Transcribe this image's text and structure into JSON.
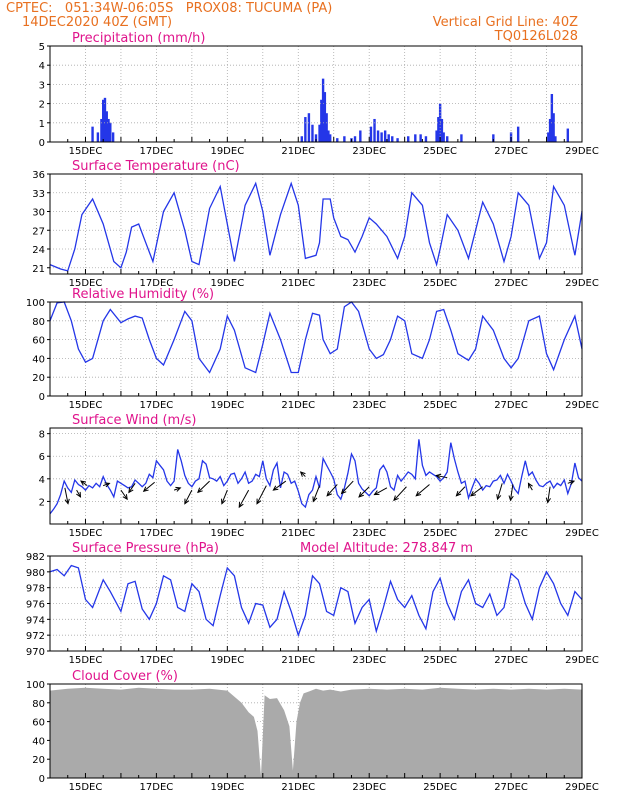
{
  "header": {
    "line1_left": "CPTEC:   051:34W-06:05S   PROX08: TUCUMA (PA)",
    "line2_left": "14DEC2020 40Z (GMT)",
    "line2_right": "Vertical Grid Line: 40Z",
    "line3_right": "TQ0126L028"
  },
  "colors": {
    "header": "#e87020",
    "panel_title": "#e0148c",
    "series": "#2436e8",
    "cloud": "#aaaaaa",
    "grid": "#aaaaaa"
  },
  "chart_data": [
    {
      "type": "bar",
      "title": "Precipitation (mm/h)",
      "ylim": [
        0,
        5
      ],
      "yticks": [
        "0",
        "1",
        "2",
        "3",
        "4",
        "5"
      ],
      "xlim": [
        14.0,
        29.0
      ],
      "xticks": [
        "15DEC",
        "17DEC",
        "19DEC",
        "21DEC",
        "23DEC",
        "25DEC",
        "27DEC",
        "29DEC"
      ],
      "grid": true,
      "x": [
        15.2,
        15.35,
        15.45,
        15.5,
        15.55,
        15.6,
        15.65,
        15.7,
        15.78,
        21.1,
        21.2,
        21.3,
        21.4,
        21.5,
        21.6,
        21.65,
        21.7,
        21.75,
        21.8,
        21.85,
        21.9,
        22.1,
        22.3,
        22.5,
        22.6,
        22.75,
        23.05,
        23.15,
        23.25,
        23.35,
        23.45,
        23.55,
        23.65,
        23.8,
        24.1,
        24.3,
        24.45,
        24.6,
        24.9,
        24.95,
        25.0,
        25.05,
        25.1,
        25.2,
        25.6,
        26.5,
        27.0,
        27.2,
        28.05,
        28.1,
        28.15,
        28.2,
        28.25,
        28.6
      ],
      "values": [
        0.8,
        0.5,
        1.2,
        2.2,
        2.3,
        1.6,
        1.2,
        1.0,
        0.5,
        0.3,
        1.3,
        1.5,
        0.9,
        0.4,
        0.9,
        2.2,
        3.3,
        2.6,
        1.5,
        0.6,
        0.4,
        0.2,
        0.3,
        0.2,
        0.3,
        0.6,
        0.8,
        1.2,
        0.6,
        0.5,
        0.6,
        0.4,
        0.3,
        0.2,
        0.3,
        0.4,
        0.4,
        0.3,
        0.6,
        1.3,
        2.0,
        1.2,
        0.5,
        0.3,
        0.4,
        0.4,
        0.5,
        0.8,
        0.5,
        1.2,
        2.5,
        1.5,
        0.3,
        0.7
      ]
    },
    {
      "type": "line",
      "title": "Surface Temperature (nC)",
      "ylim": [
        20,
        36
      ],
      "yticks": [
        "21",
        "24",
        "27",
        "30",
        "33",
        "36"
      ],
      "ytick_values": [
        21,
        24,
        27,
        30,
        33,
        36
      ],
      "xlim": [
        14.0,
        29.0
      ],
      "xticks": [
        "15DEC",
        "17DEC",
        "19DEC",
        "21DEC",
        "23DEC",
        "25DEC",
        "27DEC",
        "29DEC"
      ],
      "grid": true,
      "x": [
        14.0,
        14.3,
        14.5,
        14.7,
        14.9,
        15.2,
        15.5,
        15.8,
        16.0,
        16.15,
        16.3,
        16.5,
        16.7,
        16.9,
        17.2,
        17.5,
        17.8,
        18.0,
        18.2,
        18.5,
        18.8,
        19.0,
        19.2,
        19.5,
        19.8,
        20.0,
        20.2,
        20.5,
        20.8,
        21.0,
        21.2,
        21.5,
        21.6,
        21.7,
        21.9,
        22.0,
        22.2,
        22.4,
        22.6,
        22.8,
        23.0,
        23.2,
        23.5,
        23.8,
        24.0,
        24.2,
        24.5,
        24.7,
        24.9,
        25.0,
        25.2,
        25.5,
        25.8,
        26.0,
        26.2,
        26.5,
        26.8,
        27.0,
        27.2,
        27.5,
        27.8,
        28.0,
        28.2,
        28.5,
        28.8,
        29.0
      ],
      "values": [
        21.5,
        20.8,
        20.5,
        24.0,
        29.5,
        32.0,
        28.0,
        22.0,
        21.0,
        23.5,
        27.5,
        28.0,
        25.0,
        22.0,
        30.0,
        33.0,
        27.0,
        22.0,
        21.5,
        30.5,
        34.0,
        28.0,
        22.0,
        31.0,
        34.5,
        30.0,
        23.0,
        29.5,
        34.5,
        31.0,
        22.5,
        23.0,
        25.0,
        32.0,
        32.0,
        29.0,
        26.0,
        25.5,
        23.5,
        26.0,
        29.0,
        28.0,
        26.0,
        22.5,
        26.0,
        33.0,
        31.0,
        25.0,
        21.5,
        24.0,
        29.5,
        27.0,
        22.5,
        27.0,
        31.5,
        28.0,
        22.0,
        26.0,
        33.0,
        31.0,
        22.5,
        25.0,
        34.0,
        31.0,
        23.0,
        30.0
      ]
    },
    {
      "type": "line",
      "title": "Relative Humidity (%)",
      "ylim": [
        0,
        100
      ],
      "yticks": [
        "0",
        "20",
        "40",
        "60",
        "80",
        "100"
      ],
      "ytick_values": [
        0,
        20,
        40,
        60,
        80,
        100
      ],
      "xlim": [
        14.0,
        29.0
      ],
      "xticks": [
        "15DEC",
        "17DEC",
        "19DEC",
        "21DEC",
        "23DEC",
        "25DEC",
        "27DEC",
        "29DEC"
      ],
      "grid": true,
      "x": [
        14.0,
        14.2,
        14.4,
        14.6,
        14.8,
        15.0,
        15.2,
        15.5,
        15.7,
        16.0,
        16.2,
        16.4,
        16.6,
        16.8,
        17.0,
        17.2,
        17.5,
        17.8,
        18.0,
        18.2,
        18.5,
        18.8,
        19.0,
        19.2,
        19.5,
        19.8,
        20.0,
        20.2,
        20.5,
        20.8,
        21.0,
        21.2,
        21.4,
        21.6,
        21.7,
        21.9,
        22.1,
        22.3,
        22.5,
        22.7,
        23.0,
        23.2,
        23.4,
        23.6,
        23.8,
        24.0,
        24.2,
        24.5,
        24.7,
        24.9,
        25.1,
        25.3,
        25.5,
        25.8,
        26.0,
        26.2,
        26.5,
        26.8,
        27.0,
        27.2,
        27.5,
        27.8,
        28.0,
        28.2,
        28.5,
        28.8,
        29.0
      ],
      "values": [
        80.0,
        99.0,
        100.0,
        80.0,
        50.0,
        36.0,
        40.0,
        80.0,
        92.0,
        78.0,
        82.0,
        85.0,
        83.0,
        60.0,
        40.0,
        33.0,
        60.0,
        90.0,
        80.0,
        40.0,
        25.0,
        50.0,
        85.0,
        70.0,
        30.0,
        25.0,
        55.0,
        88.0,
        60.0,
        25.0,
        25.0,
        60.0,
        88.0,
        86.0,
        60.0,
        45.0,
        50.0,
        95.0,
        100.0,
        90.0,
        50.0,
        40.0,
        44.0,
        60.0,
        85.0,
        80.0,
        45.0,
        40.0,
        60.0,
        90.0,
        92.0,
        70.0,
        45.0,
        38.0,
        50.0,
        85.0,
        70.0,
        40.0,
        30.0,
        40.0,
        80.0,
        85.0,
        45.0,
        28.0,
        60.0,
        85.0,
        50.0
      ]
    },
    {
      "type": "line",
      "title": "Surface Wind (m/s)",
      "ylim": [
        0,
        8.5
      ],
      "yticks": [
        "2",
        "4",
        "6",
        "8"
      ],
      "ytick_values": [
        2,
        4,
        6,
        8
      ],
      "xlim": [
        14.0,
        29.0
      ],
      "xticks": [
        "15DEC",
        "17DEC",
        "19DEC",
        "21DEC",
        "23DEC",
        "25DEC",
        "27DEC",
        "29DEC"
      ],
      "grid": true,
      "x": [
        14.0,
        14.1,
        14.2,
        14.3,
        14.4,
        14.5,
        14.6,
        14.7,
        14.8,
        14.9,
        15.0,
        15.1,
        15.2,
        15.3,
        15.4,
        15.5,
        15.6,
        15.7,
        15.8,
        15.9,
        16.0,
        16.1,
        16.2,
        16.3,
        16.4,
        16.5,
        16.6,
        16.7,
        16.8,
        16.9,
        17.0,
        17.1,
        17.2,
        17.3,
        17.4,
        17.5,
        17.6,
        17.7,
        17.8,
        17.9,
        18.0,
        18.1,
        18.2,
        18.3,
        18.4,
        18.5,
        18.6,
        18.7,
        18.8,
        18.9,
        19.0,
        19.1,
        19.2,
        19.3,
        19.4,
        19.5,
        19.6,
        19.7,
        19.8,
        19.9,
        20.0,
        20.1,
        20.2,
        20.3,
        20.4,
        20.5,
        20.6,
        20.7,
        20.8,
        20.9,
        21.0,
        21.1,
        21.2,
        21.3,
        21.4,
        21.5,
        21.6,
        21.7,
        21.8,
        21.9,
        22.0,
        22.1,
        22.2,
        22.3,
        22.4,
        22.5,
        22.6,
        22.7,
        22.8,
        22.9,
        23.0,
        23.1,
        23.2,
        23.3,
        23.4,
        23.5,
        23.6,
        23.7,
        23.8,
        23.9,
        24.0,
        24.1,
        24.2,
        24.3,
        24.4,
        24.5,
        24.6,
        24.7,
        24.8,
        24.9,
        25.0,
        25.1,
        25.2,
        25.3,
        25.4,
        25.5,
        25.6,
        25.7,
        25.8,
        25.9,
        26.0,
        26.1,
        26.2,
        26.3,
        26.4,
        26.5,
        26.6,
        26.7,
        26.8,
        26.9,
        27.0,
        27.1,
        27.2,
        27.3,
        27.4,
        27.5,
        27.6,
        27.7,
        27.8,
        27.9,
        28.0,
        28.1,
        28.2,
        28.3,
        28.4,
        28.5,
        28.6,
        28.7,
        28.8,
        28.9,
        29.0
      ],
      "values": [
        0.9,
        1.3,
        1.8,
        2.6,
        3.8,
        3.2,
        2.8,
        3.9,
        3.5,
        3.3,
        3.0,
        3.4,
        3.2,
        3.6,
        3.3,
        4.2,
        3.5,
        3.0,
        2.4,
        3.8,
        3.6,
        3.4,
        3.2,
        3.3,
        3.9,
        3.6,
        3.3,
        3.6,
        4.4,
        4.1,
        5.6,
        5.2,
        4.8,
        3.8,
        3.4,
        3.8,
        6.6,
        5.6,
        4.3,
        3.6,
        3.3,
        3.8,
        4.0,
        5.6,
        5.3,
        4.1,
        4.0,
        3.8,
        4.2,
        3.4,
        3.8,
        4.4,
        4.5,
        3.6,
        4.0,
        4.6,
        3.6,
        3.8,
        4.4,
        4.2,
        5.6,
        4.0,
        3.4,
        4.8,
        5.4,
        3.2,
        4.6,
        4.4,
        3.6,
        3.8,
        2.9,
        1.8,
        1.5,
        2.6,
        3.0,
        4.2,
        3.2,
        5.8,
        5.2,
        4.6,
        4.0,
        2.6,
        2.2,
        3.2,
        4.5,
        6.2,
        5.6,
        3.6,
        3.1,
        2.8,
        2.5,
        2.9,
        3.2,
        4.8,
        5.2,
        4.6,
        3.3,
        3.0,
        4.3,
        3.8,
        4.2,
        4.6,
        4.4,
        4.0,
        7.5,
        5.2,
        4.3,
        4.6,
        4.4,
        4.2,
        3.8,
        4.1,
        4.6,
        7.2,
        5.8,
        4.6,
        3.6,
        3.8,
        2.3,
        3.2,
        4.0,
        3.6,
        3.0,
        3.4,
        3.3,
        3.8,
        3.9,
        4.3,
        3.6,
        4.4,
        3.8,
        3.1,
        2.7,
        4.2,
        5.6,
        4.3,
        4.6,
        3.9,
        3.4,
        3.3,
        3.6,
        3.8,
        3.2,
        3.6,
        3.4,
        3.9,
        2.7,
        3.6,
        5.4,
        4.1,
        3.8
      ],
      "arrows": [
        {
          "x": 14.42,
          "y": 3.2,
          "u": 0.4,
          "v": -1.4
        },
        {
          "x": 14.75,
          "y": 3.0,
          "u": 0.5,
          "v": -0.6
        },
        {
          "x": 15.05,
          "y": 3.4,
          "u": -0.8,
          "v": 0.4
        },
        {
          "x": 15.5,
          "y": 3.4,
          "u": 0.8,
          "v": 0.2
        },
        {
          "x": 16.0,
          "y": 3.0,
          "u": 0.8,
          "v": -0.8
        },
        {
          "x": 16.4,
          "y": 3.6,
          "u": -0.8,
          "v": -0.8
        },
        {
          "x": 16.95,
          "y": 3.7,
          "u": -1.4,
          "v": -0.8
        },
        {
          "x": 17.5,
          "y": 3.0,
          "u": 0.8,
          "v": 0.2
        },
        {
          "x": 18.0,
          "y": 3.0,
          "u": -0.9,
          "v": -1.2
        },
        {
          "x": 18.5,
          "y": 3.8,
          "u": -1.5,
          "v": -1.0
        },
        {
          "x": 19.0,
          "y": 3.0,
          "u": -0.7,
          "v": -1.2
        },
        {
          "x": 19.6,
          "y": 3.0,
          "u": -1.2,
          "v": -1.5
        },
        {
          "x": 20.1,
          "y": 3.4,
          "u": -1.2,
          "v": -1.6
        },
        {
          "x": 20.65,
          "y": 3.8,
          "u": -1.6,
          "v": -0.8
        },
        {
          "x": 21.2,
          "y": 4.2,
          "u": -0.6,
          "v": 0.4
        },
        {
          "x": 21.6,
          "y": 3.4,
          "u": -0.8,
          "v": -1.4
        },
        {
          "x": 22.1,
          "y": 3.5,
          "u": -1.3,
          "v": -1.0
        },
        {
          "x": 22.55,
          "y": 3.8,
          "u": -1.5,
          "v": -1.1
        },
        {
          "x": 23.0,
          "y": 3.3,
          "u": -1.3,
          "v": -0.9
        },
        {
          "x": 23.5,
          "y": 3.2,
          "u": -1.6,
          "v": -0.6
        },
        {
          "x": 24.05,
          "y": 3.3,
          "u": -1.6,
          "v": -1.2
        },
        {
          "x": 24.7,
          "y": 3.5,
          "u": -1.7,
          "v": -1.0
        },
        {
          "x": 25.2,
          "y": 4.1,
          "u": -1.4,
          "v": 0.2
        },
        {
          "x": 25.7,
          "y": 3.3,
          "u": -1.1,
          "v": -0.8
        },
        {
          "x": 26.2,
          "y": 3.3,
          "u": -1.5,
          "v": -0.8
        },
        {
          "x": 26.75,
          "y": 3.6,
          "u": -0.6,
          "v": -1.4
        },
        {
          "x": 27.05,
          "y": 3.5,
          "u": -0.3,
          "v": -1.4
        },
        {
          "x": 27.6,
          "y": 3.0,
          "u": -0.5,
          "v": 0.6
        },
        {
          "x": 28.1,
          "y": 3.3,
          "u": -0.3,
          "v": -1.4
        },
        {
          "x": 28.6,
          "y": 3.6,
          "u": 0.8,
          "v": 0.2
        }
      ]
    },
    {
      "type": "line",
      "title": "Surface Pressure (hPa)",
      "annotation": "Model Altitude: 278.847 m",
      "ylim": [
        970,
        982
      ],
      "yticks": [
        "970",
        "972",
        "974",
        "976",
        "978",
        "980",
        "982"
      ],
      "ytick_values": [
        970,
        972,
        974,
        976,
        978,
        980,
        982
      ],
      "xlim": [
        14.0,
        29.0
      ],
      "xticks": [
        "15DEC",
        "17DEC",
        "19DEC",
        "21DEC",
        "23DEC",
        "25DEC",
        "27DEC",
        "29DEC"
      ],
      "grid": true,
      "x": [
        14.0,
        14.2,
        14.4,
        14.6,
        14.8,
        15.0,
        15.2,
        15.5,
        15.7,
        16.0,
        16.2,
        16.4,
        16.6,
        16.8,
        17.0,
        17.2,
        17.4,
        17.6,
        17.8,
        18.0,
        18.2,
        18.4,
        18.6,
        18.8,
        19.0,
        19.2,
        19.4,
        19.6,
        19.8,
        20.0,
        20.2,
        20.4,
        20.6,
        20.8,
        21.0,
        21.2,
        21.4,
        21.6,
        21.8,
        22.0,
        22.2,
        22.4,
        22.6,
        22.8,
        23.0,
        23.2,
        23.4,
        23.6,
        23.8,
        24.0,
        24.2,
        24.4,
        24.6,
        24.8,
        25.0,
        25.2,
        25.4,
        25.6,
        25.8,
        26.0,
        26.2,
        26.4,
        26.6,
        26.8,
        27.0,
        27.2,
        27.4,
        27.6,
        27.8,
        28.0,
        28.2,
        28.4,
        28.6,
        28.8,
        29.0
      ],
      "values": [
        980.0,
        980.3,
        979.5,
        980.8,
        980.5,
        976.5,
        975.5,
        979.0,
        977.5,
        975.0,
        978.5,
        978.8,
        975.3,
        974.0,
        976.0,
        979.5,
        979.0,
        975.5,
        975.0,
        978.5,
        977.5,
        974.0,
        973.2,
        977.0,
        980.5,
        979.5,
        975.5,
        973.5,
        976.0,
        975.8,
        973.0,
        974.0,
        977.5,
        975.0,
        972.0,
        974.5,
        979.5,
        978.5,
        975.0,
        974.5,
        978.0,
        977.5,
        973.5,
        975.5,
        976.5,
        972.5,
        975.5,
        978.8,
        976.5,
        975.5,
        977.0,
        974.5,
        972.8,
        977.5,
        979.2,
        976.0,
        974.0,
        977.5,
        979.0,
        976.0,
        975.5,
        977.2,
        974.5,
        975.5,
        979.8,
        979.0,
        976.0,
        974.0,
        978.0,
        980.0,
        978.5,
        976.0,
        974.5,
        977.5,
        976.5
      ]
    },
    {
      "type": "area",
      "title": "Cloud Cover (%)",
      "ylim": [
        0,
        100
      ],
      "yticks": [
        "0",
        "20",
        "40",
        "60",
        "80",
        "100"
      ],
      "ytick_values": [
        0,
        20,
        40,
        60,
        80,
        100
      ],
      "xlim": [
        14.0,
        29.0
      ],
      "xticks": [
        "15DEC",
        "17DEC",
        "19DEC",
        "21DEC",
        "23DEC",
        "25DEC",
        "27DEC",
        "29DEC"
      ],
      "grid": true,
      "x": [
        14.0,
        14.5,
        15.0,
        15.5,
        16.0,
        16.5,
        17.0,
        17.5,
        18.0,
        18.5,
        19.0,
        19.4,
        19.6,
        19.75,
        19.85,
        19.95,
        20.05,
        20.2,
        20.4,
        20.6,
        20.75,
        20.85,
        20.95,
        21.05,
        21.15,
        21.3,
        21.5,
        21.7,
        21.9,
        22.2,
        22.5,
        23.0,
        23.5,
        24.0,
        24.5,
        25.0,
        25.5,
        26.0,
        26.5,
        27.0,
        27.5,
        28.0,
        28.5,
        29.0
      ],
      "values": [
        93,
        95,
        96,
        95,
        94,
        96,
        95,
        94,
        94,
        95,
        93,
        80,
        70,
        65,
        50,
        2,
        88,
        84,
        85,
        72,
        55,
        8,
        60,
        80,
        90,
        92,
        95,
        93,
        94,
        92,
        94,
        95,
        94,
        95,
        94,
        96,
        95,
        94,
        95,
        94,
        95,
        94,
        95,
        94
      ]
    }
  ]
}
